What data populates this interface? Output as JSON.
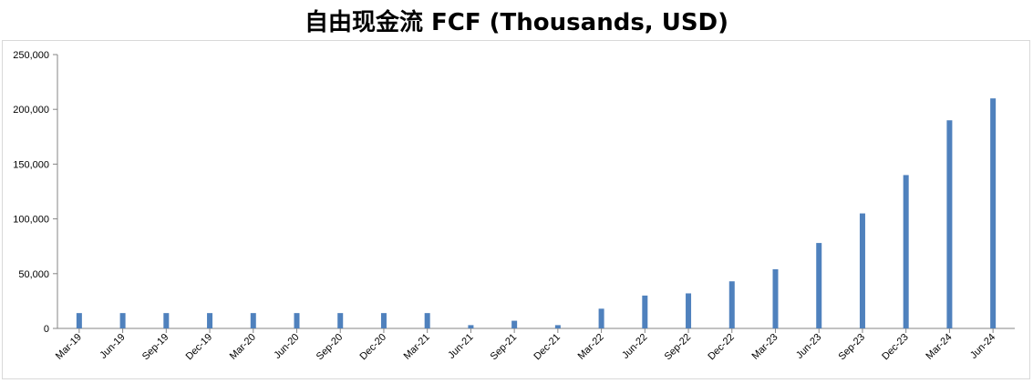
{
  "chart_data": {
    "type": "bar",
    "title": "自由现金流 FCF (Thousands, USD)",
    "xlabel": "",
    "ylabel": "",
    "categories": [
      "Mar-19",
      "Jun-19",
      "Sep-19",
      "Dec-19",
      "Mar-20",
      "Jun-20",
      "Sep-20",
      "Dec-20",
      "Mar-21",
      "Jun-21",
      "Sep-21",
      "Dec-21",
      "Mar-22",
      "Jun-22",
      "Sep-22",
      "Dec-22",
      "Mar-23",
      "Jun-23",
      "Sep-23",
      "Dec-23",
      "Mar-24",
      "Jun-24"
    ],
    "series": [
      {
        "values": [
          14000,
          14000,
          14000,
          14000,
          14000,
          14000,
          14000,
          14000,
          14000,
          3000,
          7000,
          3000,
          18000,
          30000,
          32000,
          43000,
          54000,
          78000,
          105000,
          140000,
          190000,
          210000
        ]
      }
    ],
    "ylim": [
      0,
      250000
    ],
    "yticks": [
      "0",
      "50,000",
      "100,000",
      "150,000",
      "200,000",
      "250,000"
    ],
    "ytick_values": [
      0,
      50000,
      100000,
      150000,
      200000,
      250000
    ],
    "grid": false,
    "legend": "none",
    "colors": {
      "bar": "#4f81bd",
      "axis": "#868686"
    }
  }
}
